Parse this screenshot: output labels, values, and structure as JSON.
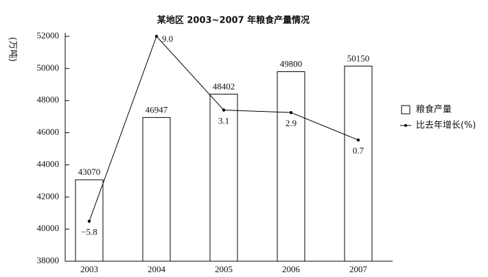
{
  "chart_data": {
    "type": "bar-line",
    "title": "某地区 2003~2007 年粮食产量情况",
    "y_label": "(万吨)",
    "categories": [
      "2003",
      "2004",
      "2005",
      "2006",
      "2007"
    ],
    "series": [
      {
        "name": "粮食产量",
        "type": "bar",
        "color": "#ffffff",
        "values": [
          43070,
          46947,
          48402,
          49800,
          50150
        ]
      },
      {
        "name": "比去年增长(%)",
        "type": "line",
        "axis": "y2",
        "color": "#000000",
        "values": [
          -5.8,
          9.0,
          3.1,
          2.9,
          0.7
        ],
        "value_labels": [
          "−5.8",
          "9.0",
          "3.1",
          "2.9",
          "0.7"
        ]
      }
    ],
    "ylim": [
      38000,
      52000
    ],
    "yticks": [
      38000,
      40000,
      42000,
      44000,
      46000,
      48000,
      50000,
      52000
    ],
    "y2lim": [
      -9,
      9
    ],
    "legend": "right"
  }
}
